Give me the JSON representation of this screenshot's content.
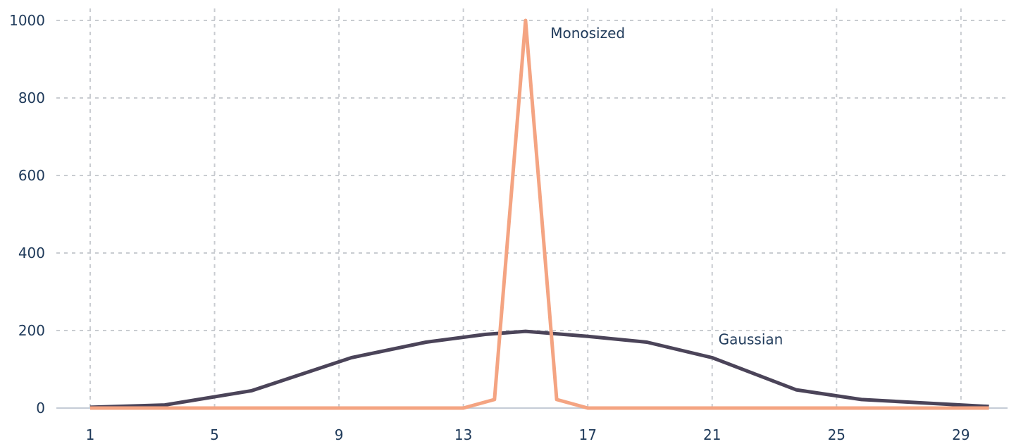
{
  "chart_data": {
    "type": "line",
    "title": "",
    "xlabel": "",
    "ylabel": "",
    "xlim": [
      1,
      30
    ],
    "ylim": [
      0,
      1000
    ],
    "x_ticks": [
      1,
      5,
      9,
      13,
      17,
      21,
      25,
      29
    ],
    "y_ticks": [
      0,
      200,
      400,
      600,
      800,
      1000
    ],
    "grid": true,
    "legend": "none",
    "series": [
      {
        "name": "Gaussian",
        "color": "#4b4459",
        "points": [
          [
            1,
            2
          ],
          [
            3.4,
            8
          ],
          [
            6.2,
            45
          ],
          [
            9.4,
            130
          ],
          [
            11.8,
            170
          ],
          [
            13.7,
            190
          ],
          [
            15,
            198
          ],
          [
            17,
            185
          ],
          [
            18.9,
            170
          ],
          [
            21,
            130
          ],
          [
            23.7,
            47
          ],
          [
            25.8,
            22
          ],
          [
            29.9,
            4
          ]
        ]
      },
      {
        "name": "Monosized",
        "color": "#f4a482",
        "points": [
          [
            1,
            0
          ],
          [
            13,
            0
          ],
          [
            14,
            22
          ],
          [
            15,
            1000
          ],
          [
            16,
            22
          ],
          [
            17,
            0
          ],
          [
            29.9,
            0
          ]
        ]
      }
    ]
  }
}
